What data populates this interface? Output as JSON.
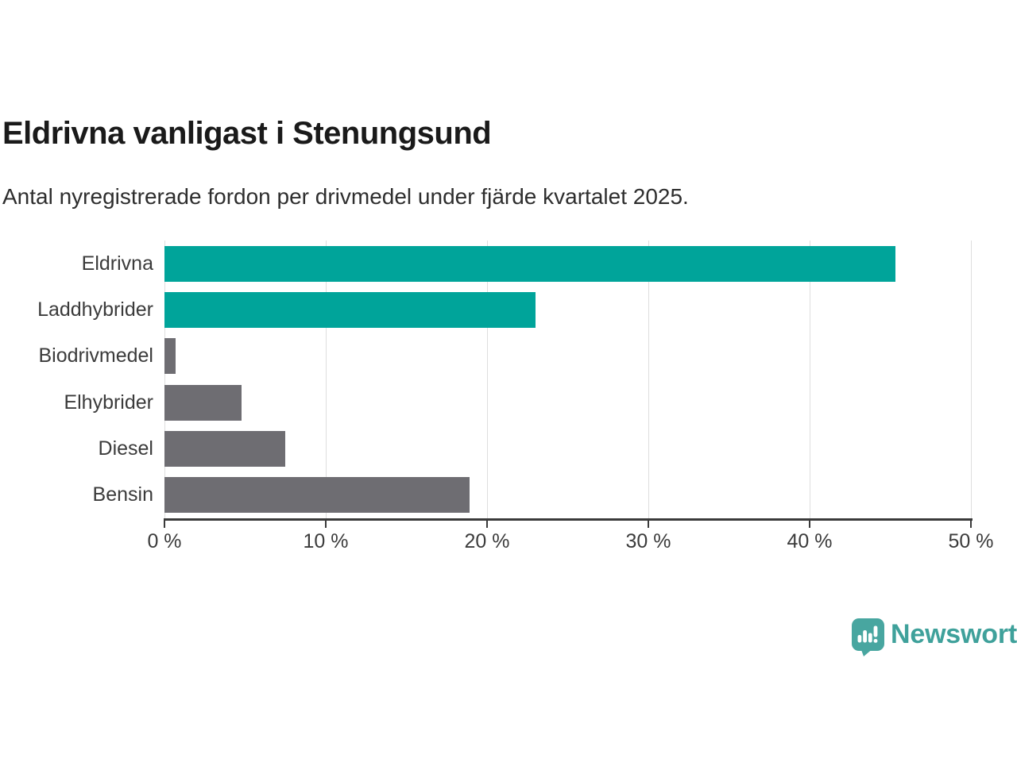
{
  "header": {
    "title": "Eldrivna vanligast i Stenungsund",
    "subtitle": "Antal nyregistrerade fordon per drivmedel under fjärde kvartalet 2025."
  },
  "chart_data": {
    "type": "bar",
    "orientation": "horizontal",
    "title": "Eldrivna vanligast i Stenungsund",
    "subtitle": "Antal nyregistrerade fordon per drivmedel under fjärde kvartalet 2025.",
    "categories": [
      "Eldrivna",
      "Laddhybrider",
      "Biodrivmedel",
      "Elhybrider",
      "Diesel",
      "Bensin"
    ],
    "values": [
      45.3,
      23.0,
      0.7,
      4.8,
      7.5,
      18.9
    ],
    "unit": "%",
    "xlim": [
      0,
      50
    ],
    "x_ticks": [
      0,
      10,
      20,
      30,
      40,
      50
    ],
    "x_tick_labels": [
      "0 %",
      "10 %",
      "20 %",
      "30 %",
      "40 %",
      "50 %"
    ],
    "bar_colors": [
      "#00a49a",
      "#00a49a",
      "#6e6d72",
      "#6e6d72",
      "#6e6d72",
      "#6e6d72"
    ],
    "grid": true,
    "legend": false,
    "ylabel": "",
    "xlabel": ""
  },
  "colors": {
    "accent_teal": "#00a49a",
    "neutral_gray": "#6e6d72",
    "gridline": "#dedede",
    "axis": "#3a3a3a",
    "logo_teal": "#3fa19b"
  },
  "footer": {
    "brand": "Newsworthy",
    "logo_icon": "bar-chart-speech-bubble-icon"
  }
}
